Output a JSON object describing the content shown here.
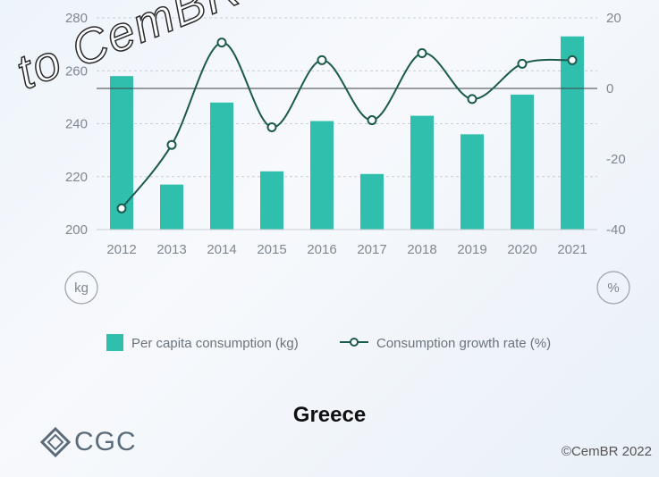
{
  "chart_data": {
    "type": "bar+line",
    "categories": [
      "2012",
      "2013",
      "2014",
      "2015",
      "2016",
      "2017",
      "2018",
      "2019",
      "2020",
      "2021"
    ],
    "series": [
      {
        "name": "Per capita consumption (kg)",
        "type": "bar",
        "axis": "left",
        "values": [
          258,
          217,
          248,
          222,
          241,
          221,
          243,
          236,
          251,
          273
        ]
      },
      {
        "name": "Consumption growth rate (%)",
        "type": "line",
        "axis": "right",
        "values": [
          -34,
          -16,
          13,
          -11,
          8,
          -9,
          10,
          -3,
          7,
          8
        ]
      }
    ],
    "left_axis": {
      "unit": "kg",
      "ylim": [
        200,
        280
      ],
      "ticks": [
        200,
        220,
        240,
        260,
        280
      ]
    },
    "right_axis": {
      "unit": "%",
      "ylim": [
        -40,
        20
      ],
      "ticks": [
        -40,
        -20,
        0,
        20
      ]
    },
    "legend_placement": "bottom",
    "colors": {
      "bar": "#2fbfac",
      "line": "#1b5a4e"
    }
  },
  "country_label": "Greece",
  "logo_text": "CGC",
  "copyright": "©CemBR 2022",
  "watermark_text": "to CemBR a"
}
